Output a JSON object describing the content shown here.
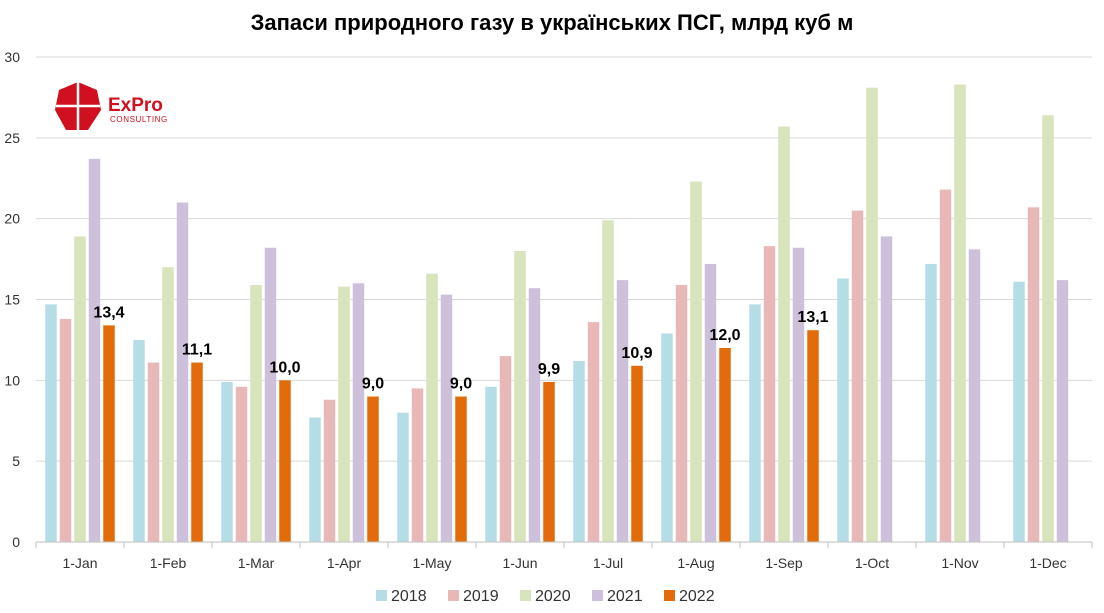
{
  "logo": {
    "main": "ExPro",
    "sub": "CONSULTING",
    "color": "#d0101f"
  },
  "chart_data": {
    "type": "bar",
    "title": "Запаси природного газу в українських ПСГ, млрд куб м",
    "xlabel": "",
    "ylabel": "",
    "ylim": [
      0,
      30
    ],
    "yticks": [
      "0",
      "5",
      "10",
      "15",
      "20",
      "25",
      "30"
    ],
    "grid": true,
    "legend_position": "bottom",
    "categories": [
      "1-Jan",
      "1-Feb",
      "1-Mar",
      "1-Apr",
      "1-May",
      "1-Jun",
      "1-Jul",
      "1-Aug",
      "1-Sep",
      "1-Oct",
      "1-Nov",
      "1-Dec"
    ],
    "series": [
      {
        "name": "2018",
        "color": "#b6dde6",
        "values": [
          14.7,
          12.5,
          9.9,
          7.7,
          8.0,
          9.6,
          11.2,
          12.9,
          14.7,
          16.3,
          17.2,
          16.1
        ]
      },
      {
        "name": "2019",
        "color": "#e8b8b8",
        "values": [
          13.8,
          11.1,
          9.6,
          8.8,
          9.5,
          11.5,
          13.6,
          15.9,
          18.3,
          20.5,
          21.8,
          20.7
        ]
      },
      {
        "name": "2020",
        "color": "#d8e4bc",
        "values": [
          18.9,
          17.0,
          15.9,
          15.8,
          16.6,
          18.0,
          19.9,
          22.3,
          25.7,
          28.1,
          28.3,
          26.4
        ]
      },
      {
        "name": "2021",
        "color": "#ccc0da",
        "values": [
          23.7,
          21.0,
          18.2,
          16.0,
          15.3,
          15.7,
          16.2,
          17.2,
          18.2,
          18.9,
          18.1,
          16.2
        ]
      },
      {
        "name": "2022",
        "color": "#e36c0a",
        "values": [
          13.4,
          11.1,
          10.0,
          9.0,
          9.0,
          9.9,
          10.9,
          12.0,
          13.1,
          null,
          null,
          null
        ],
        "data_labels": [
          "13,4",
          "11,1",
          "10,0",
          "9,0",
          "9,0",
          "9,9",
          "10,9",
          "12,0",
          "13,1",
          null,
          null,
          null
        ]
      }
    ]
  }
}
